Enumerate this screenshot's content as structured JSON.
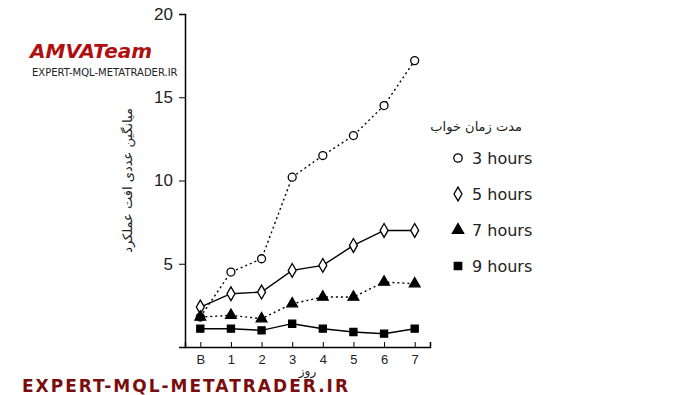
{
  "chart_data": {
    "type": "line",
    "x_label": "روز",
    "y_label": "میانگین عددی افت عملکرد",
    "legend_title": "مدت زمان خواب",
    "annotations": [
      "AMVATeam",
      "EXPERT-MQL-METATRADER.IR",
      "EXPERT-MQL-METATRADER.IR"
    ],
    "categories": [
      "B",
      "1",
      "2",
      "3",
      "4",
      "5",
      "6",
      "7"
    ],
    "series": [
      {
        "name": "3 hours",
        "color": "#000000",
        "marker": "open-circle",
        "line_style": "dotted",
        "values": [
          1.8,
          4.5,
          5.3,
          10.2,
          11.5,
          12.7,
          14.5,
          17.2
        ]
      },
      {
        "name": "5 hours",
        "color": "#000000",
        "marker": "open-diamond",
        "line_style": "solid",
        "values": [
          2.4,
          3.2,
          3.3,
          4.6,
          4.9,
          6.1,
          7.0,
          7.0
        ]
      },
      {
        "name": "7 hours",
        "color": "#000000",
        "marker": "triangle",
        "line_style": "dotted",
        "values": [
          1.8,
          1.9,
          1.7,
          2.6,
          3.0,
          3.0,
          3.9,
          3.8
        ]
      },
      {
        "name": "9 hours",
        "color": "#000000",
        "marker": "square",
        "line_style": "solid",
        "values": [
          1.1,
          1.1,
          1.0,
          1.4,
          1.1,
          0.9,
          0.8,
          1.1
        ]
      }
    ],
    "ylim": [
      0,
      20
    ],
    "yticks": [
      5,
      10,
      15,
      20
    ],
    "grid": false,
    "legend": "right"
  }
}
